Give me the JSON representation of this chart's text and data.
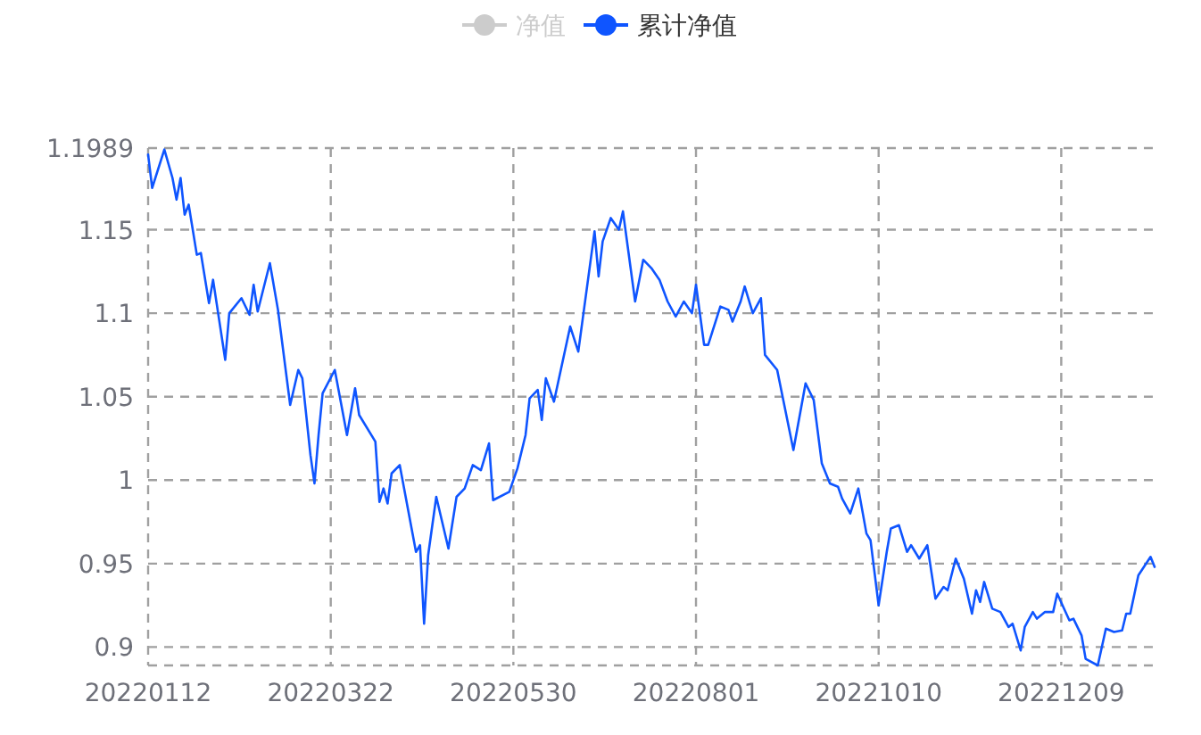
{
  "chart_data": {
    "type": "line",
    "legend": "top",
    "grid": true,
    "categories": [
      "20220112",
      null,
      null,
      null,
      null,
      null,
      null,
      null,
      null,
      null,
      null,
      null,
      null,
      null,
      null,
      null,
      null,
      null,
      null,
      null,
      null,
      null,
      null,
      null,
      null,
      null,
      null,
      null,
      null,
      null,
      null,
      null,
      null,
      null,
      null,
      null,
      null,
      null,
      null,
      null,
      null,
      null,
      null,
      null,
      null,
      "20220322",
      null,
      null,
      null,
      null,
      null,
      null,
      null,
      null,
      null,
      null,
      null,
      null,
      null,
      null,
      null,
      null,
      null,
      null,
      null,
      null,
      null,
      null,
      null,
      null,
      null,
      null,
      null,
      null,
      null,
      null,
      null,
      null,
      null,
      null,
      null,
      null,
      null,
      null,
      null,
      null,
      null,
      null,
      null,
      null,
      "20220530",
      null,
      null,
      null,
      null,
      null,
      null,
      null,
      null,
      null,
      null,
      null,
      null,
      null,
      null,
      null,
      null,
      null,
      null,
      null,
      null,
      null,
      null,
      null,
      null,
      null,
      null,
      null,
      null,
      null,
      null,
      null,
      null,
      null,
      null,
      null,
      null,
      null,
      null,
      null,
      null,
      null,
      null,
      null,
      null,
      "20220801",
      null,
      null,
      null,
      null,
      null,
      null,
      null,
      null,
      null,
      null,
      null,
      null,
      null,
      null,
      null,
      null,
      null,
      null,
      null,
      null,
      null,
      null,
      null,
      null,
      null,
      null,
      null,
      null,
      null,
      null,
      null,
      null,
      null,
      null,
      null,
      null,
      null,
      null,
      null,
      null,
      null,
      null,
      null,
      null,
      "20221010",
      null,
      null,
      null,
      null,
      null,
      null,
      null,
      null,
      null,
      null,
      null,
      null,
      null,
      null,
      null,
      null,
      null,
      null,
      null,
      null,
      null,
      null,
      null,
      null,
      null,
      null,
      null,
      null,
      null,
      null,
      null,
      null,
      null,
      null,
      null,
      null,
      null,
      null,
      null,
      null,
      null,
      null,
      null,
      null,
      "20221209",
      null,
      null,
      null,
      null,
      null,
      null,
      null,
      null,
      null,
      null,
      null,
      null,
      null,
      null,
      null,
      null,
      null,
      null,
      null,
      null,
      null,
      null,
      null
    ],
    "ylim": [
      0.889,
      1.1989
    ],
    "yticks": [
      0.9,
      0.95,
      1,
      1.05,
      1.1,
      1.15,
      1.1989
    ],
    "series": [
      {
        "name": "净值",
        "color": "#cccccc",
        "values": [
          null,
          null,
          null,
          null,
          null,
          null,
          null,
          null,
          null,
          null,
          null,
          null,
          null,
          null,
          null,
          null,
          null,
          null,
          null,
          null,
          null,
          null,
          null,
          null,
          null,
          null,
          null,
          null,
          null,
          null,
          null,
          null,
          null,
          null,
          null,
          null,
          null,
          null,
          null,
          null,
          null,
          null,
          null,
          null,
          null,
          null,
          null,
          null,
          null,
          null,
          null,
          null,
          null,
          null,
          null,
          null,
          null,
          null,
          null,
          null,
          null,
          null,
          null,
          null,
          null,
          null,
          null,
          null,
          null,
          null,
          null,
          null,
          null,
          null,
          null,
          null,
          null,
          null,
          null,
          null,
          null,
          null,
          null,
          null,
          null,
          null,
          null,
          null,
          null,
          null,
          null,
          null,
          null,
          null,
          null,
          null,
          null,
          null,
          null,
          null,
          null,
          null,
          null,
          null,
          null,
          null,
          null,
          null,
          null,
          null,
          null,
          null,
          null,
          null,
          null,
          null,
          null,
          null,
          null,
          null,
          null,
          null,
          null,
          null,
          null,
          null,
          null,
          null,
          null,
          null,
          null,
          null,
          null,
          null,
          null,
          null,
          null,
          null,
          null,
          null,
          null,
          null,
          null,
          null,
          null,
          null,
          null,
          null,
          null,
          null,
          null,
          null,
          null,
          null,
          null,
          null,
          null,
          null,
          null,
          null,
          null,
          null,
          null,
          null,
          null,
          null,
          null,
          null,
          null,
          null,
          null,
          null,
          null,
          null,
          null,
          null,
          null,
          null,
          null,
          null,
          null,
          null,
          null,
          null,
          null,
          null,
          null,
          null,
          null,
          null,
          null,
          null,
          null,
          null,
          null,
          null,
          null,
          null,
          null,
          null,
          null,
          null,
          null,
          null,
          null,
          null,
          null,
          null,
          null,
          null,
          null,
          null,
          null,
          null,
          null,
          null,
          null,
          null,
          null,
          null,
          null,
          null,
          null,
          null,
          null,
          null,
          null,
          null,
          null,
          null,
          null,
          null,
          null,
          null,
          null,
          null,
          null,
          null,
          null,
          null,
          null,
          null,
          null,
          null,
          null,
          null,
          null,
          null,
          null
        ]
      },
      {
        "name": "累计净值",
        "color": "#0f55ff",
        "values": [
          1.195,
          1.175,
          null,
          null,
          1.198,
          null,
          1.181,
          1.168,
          1.181,
          1.159,
          1.165,
          null,
          1.135,
          1.136,
          null,
          1.106,
          1.12,
          null,
          null,
          1.072,
          1.1,
          null,
          null,
          1.109,
          null,
          1.099,
          1.117,
          1.101,
          null,
          null,
          1.13,
          null,
          1.102,
          null,
          null,
          1.045,
          null,
          1.066,
          1.061,
          null,
          1.015,
          0.998,
          1.027,
          1.052,
          null,
          null,
          1.066,
          null,
          null,
          1.027,
          null,
          1.055,
          1.039,
          null,
          null,
          null,
          1.023,
          0.987,
          0.995,
          0.986,
          1.004,
          null,
          1.009,
          null,
          null,
          null,
          0.957,
          0.961,
          0.914,
          0.955,
          null,
          0.99,
          null,
          null,
          0.959,
          null,
          0.99,
          null,
          0.995,
          null,
          1.009,
          null,
          1.006,
          null,
          1.022,
          0.988,
          null,
          null,
          null,
          0.993,
          null,
          1.007,
          null,
          1.027,
          1.049,
          null,
          1.054,
          1.036,
          1.061,
          null,
          1.047,
          null,
          null,
          null,
          1.092,
          null,
          1.077,
          null,
          null,
          null,
          1.149,
          1.122,
          1.143,
          null,
          1.157,
          null,
          1.15,
          1.161,
          null,
          null,
          1.107,
          null,
          1.132,
          null,
          1.127,
          null,
          1.12,
          null,
          1.107,
          null,
          1.098,
          null,
          1.107,
          null,
          1.1,
          1.117,
          null,
          1.081,
          1.081,
          null,
          null,
          1.104,
          null,
          1.102,
          1.095,
          null,
          1.107,
          1.116,
          null,
          1.1,
          null,
          1.109,
          1.075,
          null,
          null,
          1.066,
          null,
          null,
          null,
          1.018,
          null,
          null,
          1.058,
          null,
          1.048,
          null,
          1.01,
          null,
          0.998,
          null,
          0.996,
          0.989,
          null,
          0.98,
          null,
          0.995,
          null,
          0.968,
          0.964,
          null,
          0.925,
          null,
          0.957,
          0.971,
          null,
          0.973,
          null,
          0.957,
          0.961,
          null,
          0.953,
          null,
          0.961,
          null,
          0.929,
          null,
          0.936,
          0.934,
          null,
          0.953,
          null,
          0.941,
          null,
          0.92,
          0.934,
          0.927,
          0.939,
          null,
          0.923,
          null,
          0.921,
          null,
          0.912,
          0.914,
          null,
          0.898,
          0.912,
          null,
          0.921,
          0.917,
          null,
          0.921,
          null,
          0.921,
          0.932,
          null,
          null,
          0.916,
          0.917,
          null,
          0.907,
          0.893,
          null,
          null,
          0.889,
          null,
          0.911,
          null,
          0.909,
          null,
          0.91,
          0.92,
          0.92,
          null,
          0.943,
          null,
          null,
          0.954,
          0.948
        ]
      }
    ]
  }
}
